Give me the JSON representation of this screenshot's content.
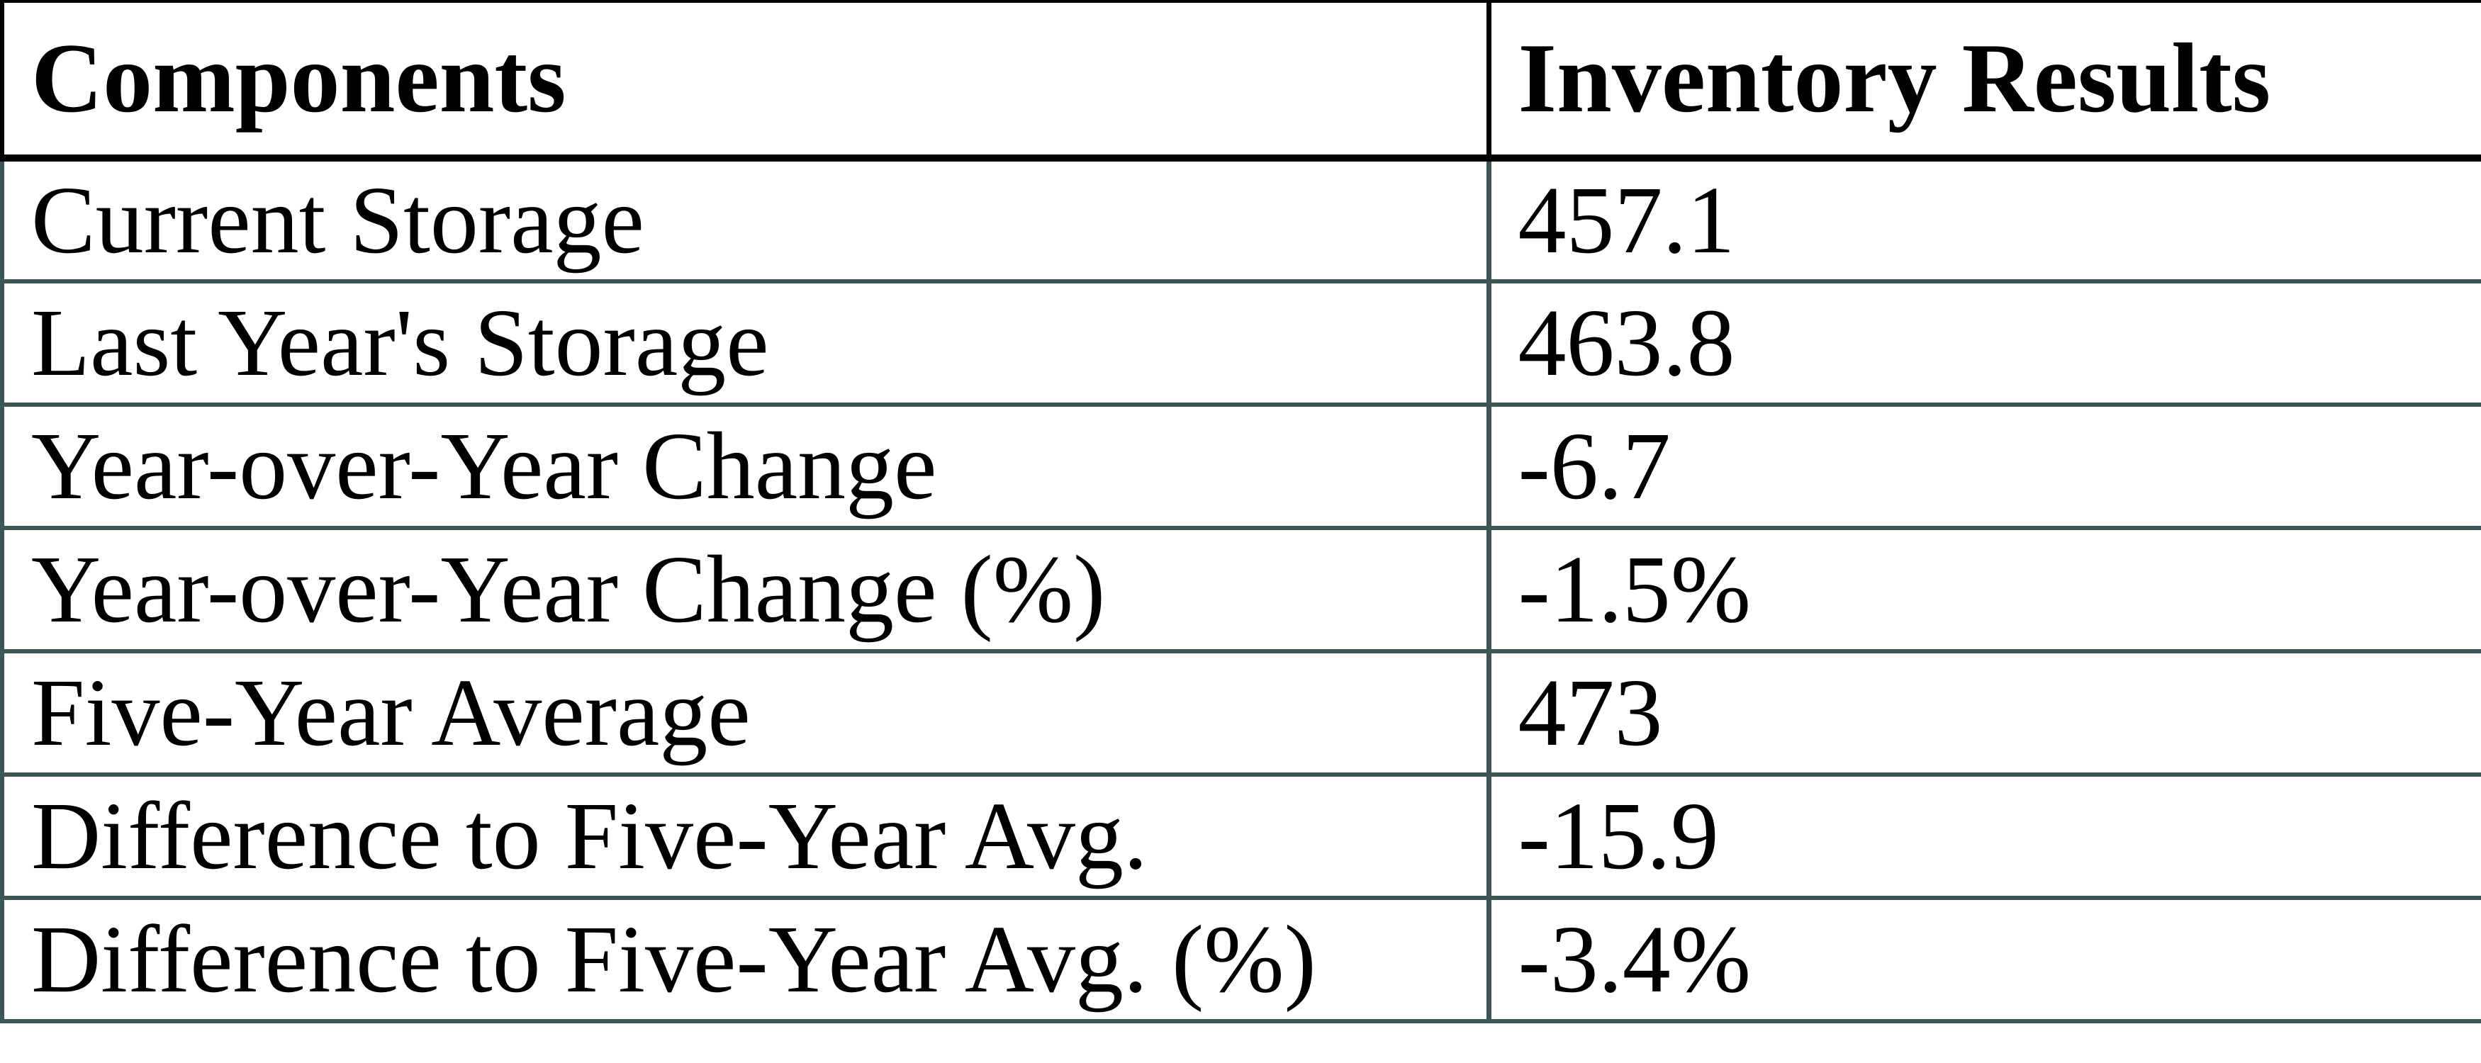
{
  "chart_data": {
    "type": "table",
    "columns": [
      "Components",
      "Inventory Results"
    ],
    "rows": [
      [
        "Current Storage",
        "457.1"
      ],
      [
        "Last Year's Storage",
        "463.8"
      ],
      [
        "Year-over-Year Change",
        "-6.7"
      ],
      [
        "Year-over-Year Change (%)",
        "-1.5%"
      ],
      [
        "Five-Year Average",
        "473"
      ],
      [
        "Difference to Five-Year Avg.",
        "-15.9"
      ],
      [
        "Difference to Five-Year Avg. (%)",
        "-3.4%"
      ]
    ]
  },
  "colors": {
    "border_black": "#000000",
    "border_teal": "#3d5555",
    "text": "#000000",
    "background": "#ffffff"
  }
}
